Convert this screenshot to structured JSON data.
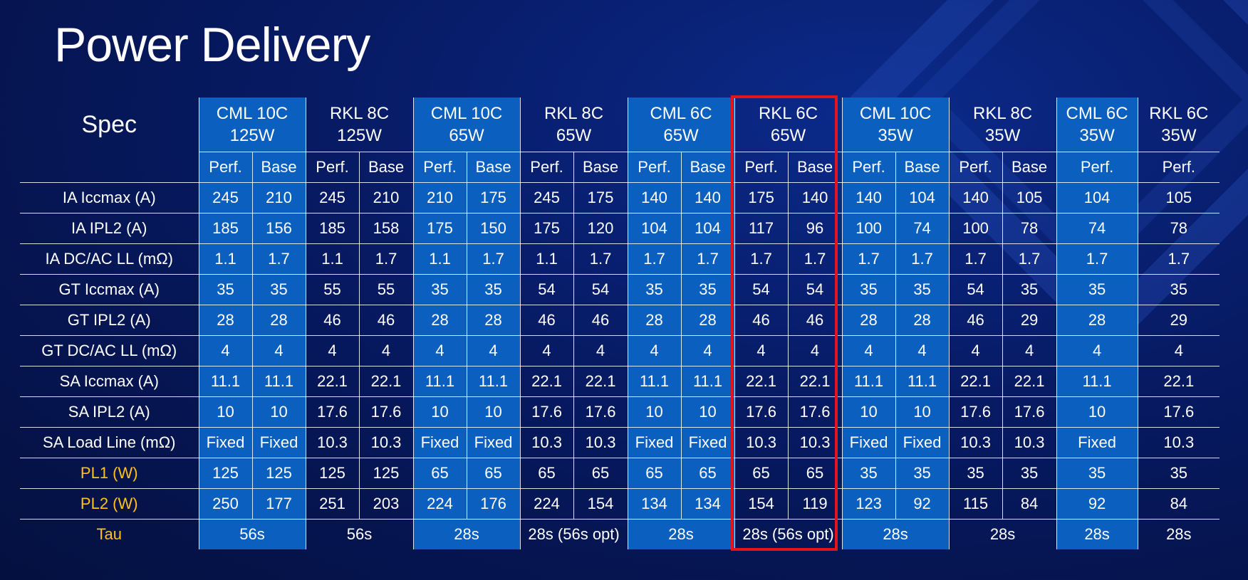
{
  "title": "Power Delivery",
  "spec_label": "Spec",
  "groups": [
    {
      "line1": "CML 10C",
      "line2": "125W"
    },
    {
      "line1": "RKL 8C",
      "line2": "125W"
    },
    {
      "line1": "CML 10C",
      "line2": "65W"
    },
    {
      "line1": "RKL 8C",
      "line2": "65W"
    },
    {
      "line1": "CML 6C",
      "line2": "65W"
    },
    {
      "line1": "RKL 6C",
      "line2": "65W"
    },
    {
      "line1": "CML 10C",
      "line2": "35W"
    },
    {
      "line1": "RKL 8C",
      "line2": "35W"
    },
    {
      "line1": "CML 6C",
      "line2": "35W"
    },
    {
      "line1": "RKL 6C",
      "line2": "35W"
    }
  ],
  "subheaders": [
    "Perf.",
    "Base",
    "Perf.",
    "Base",
    "Perf.",
    "Base",
    "Perf.",
    "Base",
    "Perf.",
    "Base",
    "Perf.",
    "Base",
    "Perf.",
    "Base",
    "Perf.",
    "Base",
    "Perf.",
    "Perf."
  ],
  "rows": [
    {
      "label": "IA Iccmax (A)",
      "values": [
        "245",
        "210",
        "245",
        "210",
        "210",
        "175",
        "245",
        "175",
        "140",
        "140",
        "175",
        "140",
        "140",
        "104",
        "140",
        "105",
        "104",
        "105"
      ]
    },
    {
      "label": "IA IPL2 (A)",
      "values": [
        "185",
        "156",
        "185",
        "158",
        "175",
        "150",
        "175",
        "120",
        "104",
        "104",
        "117",
        "96",
        "100",
        "74",
        "100",
        "78",
        "74",
        "78"
      ]
    },
    {
      "label": "IA DC/AC LL (mΩ)",
      "values": [
        "1.1",
        "1.7",
        "1.1",
        "1.7",
        "1.1",
        "1.7",
        "1.1",
        "1.7",
        "1.7",
        "1.7",
        "1.7",
        "1.7",
        "1.7",
        "1.7",
        "1.7",
        "1.7",
        "1.7",
        "1.7"
      ]
    },
    {
      "label": "GT Iccmax (A)",
      "values": [
        "35",
        "35",
        "55",
        "55",
        "35",
        "35",
        "54",
        "54",
        "35",
        "35",
        "54",
        "54",
        "35",
        "35",
        "54",
        "35",
        "35",
        "35"
      ]
    },
    {
      "label": "GT IPL2 (A)",
      "values": [
        "28",
        "28",
        "46",
        "46",
        "28",
        "28",
        "46",
        "46",
        "28",
        "28",
        "46",
        "46",
        "28",
        "28",
        "46",
        "29",
        "28",
        "29"
      ]
    },
    {
      "label": "GT DC/AC LL (mΩ)",
      "values": [
        "4",
        "4",
        "4",
        "4",
        "4",
        "4",
        "4",
        "4",
        "4",
        "4",
        "4",
        "4",
        "4",
        "4",
        "4",
        "4",
        "4",
        "4"
      ]
    },
    {
      "label": "SA Iccmax (A)",
      "values": [
        "11.1",
        "11.1",
        "22.1",
        "22.1",
        "11.1",
        "11.1",
        "22.1",
        "22.1",
        "11.1",
        "11.1",
        "22.1",
        "22.1",
        "11.1",
        "11.1",
        "22.1",
        "22.1",
        "11.1",
        "22.1"
      ]
    },
    {
      "label": "SA IPL2 (A)",
      "values": [
        "10",
        "10",
        "17.6",
        "17.6",
        "10",
        "10",
        "17.6",
        "17.6",
        "10",
        "10",
        "17.6",
        "17.6",
        "10",
        "10",
        "17.6",
        "17.6",
        "10",
        "17.6"
      ]
    },
    {
      "label": "SA Load Line (mΩ)",
      "values": [
        "Fixed",
        "Fixed",
        "10.3",
        "10.3",
        "Fixed",
        "Fixed",
        "10.3",
        "10.3",
        "Fixed",
        "Fixed",
        "10.3",
        "10.3",
        "Fixed",
        "Fixed",
        "10.3",
        "10.3",
        "Fixed",
        "10.3"
      ]
    },
    {
      "label": "PL1 (W)",
      "yellow": true,
      "values": [
        "125",
        "125",
        "125",
        "125",
        "65",
        "65",
        "65",
        "65",
        "65",
        "65",
        "65",
        "65",
        "35",
        "35",
        "35",
        "35",
        "35",
        "35"
      ]
    },
    {
      "label": "PL2 (W)",
      "yellow": true,
      "values": [
        "250",
        "177",
        "251",
        "203",
        "224",
        "176",
        "224",
        "154",
        "134",
        "134",
        "154",
        "119",
        "123",
        "92",
        "115",
        "84",
        "92",
        "84"
      ]
    }
  ],
  "tau": {
    "label": "Tau",
    "values": [
      "56s",
      "56s",
      "28s",
      "28s (56s opt)",
      "28s",
      "28s (56s opt)",
      "28s",
      "28s",
      "28s",
      "28s"
    ]
  },
  "colors": {
    "highlight_border": "#e3141c",
    "label_yellow": "#ffc21a",
    "cell_blue": "#0a5fbf"
  }
}
